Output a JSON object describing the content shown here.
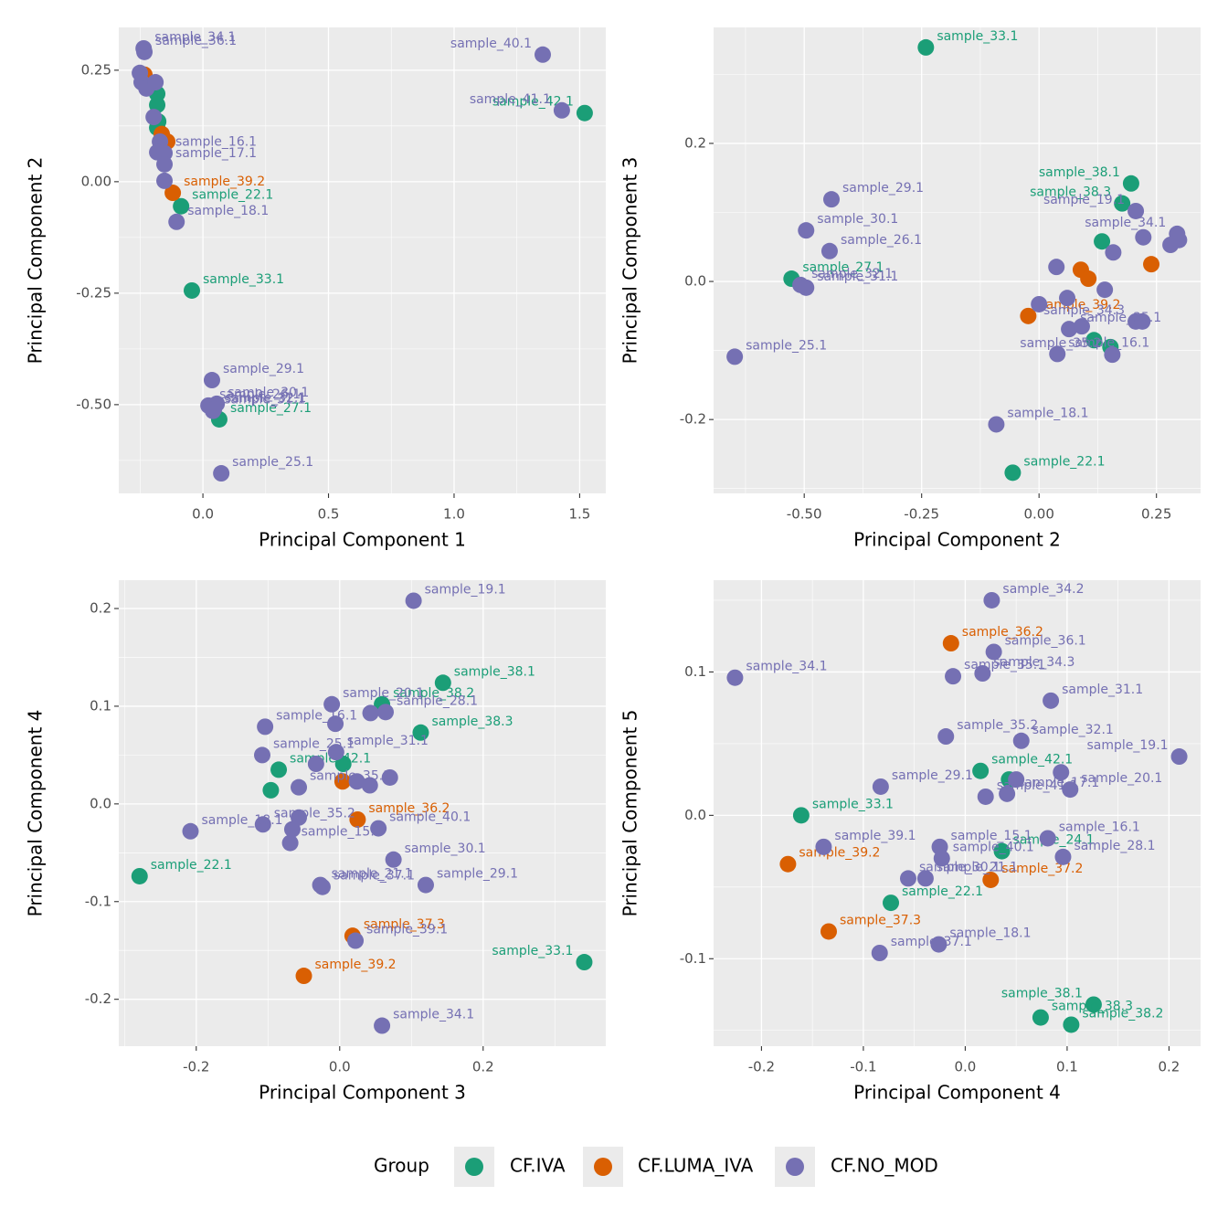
{
  "legend": {
    "title": "Group"
  },
  "chart_data": [
    {
      "type": "scatter",
      "x_label": "Principal Component 1",
      "y_label": "Principal Component 2",
      "xlim": [
        -0.335,
        1.604
      ],
      "ylim": [
        -0.699,
        0.346
      ],
      "xticks": [
        {
          "value": 0,
          "label": "0.0"
        },
        0.5,
        {
          "value": 1,
          "label": "1.0"
        },
        1.5
      ],
      "yticks": [
        0.25,
        {
          "value": 0,
          "label": "0.00"
        },
        -0.25,
        {
          "value": -0.5,
          "label": "-0.50"
        }
      ],
      "grid": true,
      "series": [
        {
          "name": "CF.IVA",
          "color": "#1b9e77",
          "x": [
            -0.182,
            -0.182,
            -0.178,
            -0.182,
            -0.087,
            -0.044,
            0.065,
            1.52
          ],
          "y": [
            0.197,
            0.172,
            0.135,
            0.121,
            -0.055,
            -0.244,
            -0.533,
            0.154
          ],
          "labels": [
            null,
            null,
            null,
            null,
            "sample_22.1",
            "sample_33.1",
            "sample_27.1",
            "sample_42.1"
          ]
        },
        {
          "name": "CF.LUMA_IVA",
          "color": "#d95f02",
          "x": [
            -0.233,
            -0.164,
            -0.142,
            -0.12
          ],
          "y": [
            0.24,
            0.107,
            0.09,
            -0.025
          ],
          "labels": [
            null,
            null,
            null,
            "sample_39.2"
          ]
        },
        {
          "name": "CF.NO_MOD",
          "color": "#7570b3",
          "x": [
            -0.236,
            -0.233,
            -0.251,
            -0.244,
            -0.225,
            -0.189,
            -0.196,
            -0.171,
            -0.182,
            -0.153,
            -0.153,
            -0.153,
            -0.105,
            1.353,
            1.429,
            0.036,
            0.022,
            0.055,
            0.04,
            0.044,
            0.073
          ],
          "y": [
            0.299,
            0.291,
            0.244,
            0.223,
            0.209,
            0.223,
            0.145,
            0.09,
            0.066,
            0.064,
            0.039,
            0.002,
            -0.09,
            0.285,
            0.16,
            -0.445,
            -0.502,
            -0.498,
            -0.514,
            -0.51,
            -0.654
          ],
          "labels": [
            "sample_34.1",
            "sample_36.1",
            null,
            null,
            null,
            null,
            null,
            null,
            null,
            "sample_16.1",
            "sample_17.1",
            null,
            "sample_18.1",
            "sample_40.1",
            "sample_41.1",
            "sample_29.1",
            "sample_26.1",
            "sample_30.1",
            "sample_31.1",
            "sample_32.1",
            "sample_25.1"
          ]
        }
      ]
    },
    {
      "type": "scatter",
      "x_label": "Principal Component 2",
      "y_label": "Principal Component 3",
      "xlim": [
        -0.693,
        0.344
      ],
      "ylim": [
        -0.307,
        0.368
      ],
      "xticks": [
        {
          "value": -0.5,
          "label": "-0.50"
        },
        -0.25,
        {
          "value": 0,
          "label": "0.00"
        },
        0.25
      ],
      "yticks": [
        0.2,
        {
          "value": 0,
          "label": "0.0"
        },
        -0.2
      ],
      "grid": true,
      "series": [
        {
          "name": "CF.IVA",
          "color": "#1b9e77",
          "x": [
            -0.241,
            0.196,
            0.177,
            0.134,
            -0.527,
            0.117,
            0.152,
            -0.056
          ],
          "y": [
            0.339,
            0.142,
            0.113,
            0.058,
            0.004,
            -0.085,
            -0.095,
            -0.277
          ],
          "labels": [
            "sample_33.1",
            "sample_38.1",
            "sample_38.3",
            null,
            "sample_27.1",
            null,
            null,
            "sample_22.1"
          ]
        },
        {
          "name": "CF.LUMA_IVA",
          "color": "#d95f02",
          "x": [
            0.089,
            0.105,
            0.239,
            -0.023
          ],
          "y": [
            0.017,
            0.004,
            0.025,
            -0.05
          ],
          "labels": [
            null,
            null,
            null,
            "sample_39.2"
          ]
        },
        {
          "name": "CF.NO_MOD",
          "color": "#7570b3",
          "x": [
            -0.442,
            -0.496,
            -0.446,
            -0.508,
            -0.496,
            -0.648,
            -0.091,
            0.039,
            0.156,
            0.037,
            0.06,
            0.0,
            0.064,
            0.091,
            0.14,
            0.206,
            0.22,
            0.206,
            0.158,
            0.222,
            0.28,
            0.298,
            0.294
          ],
          "y": [
            0.119,
            0.074,
            0.044,
            -0.005,
            -0.009,
            -0.109,
            -0.207,
            -0.105,
            -0.106,
            0.021,
            -0.024,
            -0.033,
            -0.069,
            -0.065,
            -0.012,
            -0.058,
            -0.058,
            0.102,
            0.042,
            0.064,
            0.053,
            0.06,
            0.069
          ],
          "labels": [
            "sample_29.1",
            "sample_30.1",
            "sample_26.1",
            "sample_32.1",
            "sample_31.1",
            "sample_25.1",
            "sample_18.1",
            "sample_16.1",
            "sample_35.2",
            null,
            null,
            null,
            "sample_35.1",
            null,
            null,
            "sample_34.3",
            null,
            "sample_19.1",
            null,
            null,
            null,
            null,
            "sample_34.1"
          ]
        }
      ]
    },
    {
      "type": "scatter",
      "x_label": "Principal Component 3",
      "y_label": "Principal Component 4",
      "xlim": [
        -0.308,
        0.371
      ],
      "ylim": [
        -0.248,
        0.229
      ],
      "xticks": [
        -0.2,
        {
          "value": 0,
          "label": "0.0"
        },
        0.2
      ],
      "yticks": [
        0.2,
        0.1,
        {
          "value": 0,
          "label": "0.0"
        },
        -0.1,
        -0.2
      ],
      "grid": true,
      "series": [
        {
          "name": "CF.IVA",
          "color": "#1b9e77",
          "x": [
            0.144,
            0.059,
            0.113,
            0.005,
            -0.085,
            -0.096,
            -0.279,
            0.341
          ],
          "y": [
            0.124,
            0.102,
            0.073,
            0.041,
            0.035,
            0.014,
            -0.074,
            -0.162
          ],
          "labels": [
            "sample_38.1",
            "sample_38.2",
            "sample_38.3",
            null,
            "sample_42.1",
            null,
            "sample_22.1",
            "sample_33.1"
          ]
        },
        {
          "name": "CF.LUMA_IVA",
          "color": "#d95f02",
          "x": [
            0.004,
            0.025,
            0.018,
            -0.05
          ],
          "y": [
            0.023,
            -0.016,
            -0.135,
            -0.176
          ],
          "labels": [
            null,
            "sample_36.2",
            "sample_37.3",
            "sample_39.2"
          ]
        },
        {
          "name": "CF.NO_MOD",
          "color": "#7570b3",
          "x": [
            0.103,
            -0.011,
            -0.006,
            -0.104,
            -0.108,
            -0.005,
            -0.033,
            0.043,
            0.064,
            -0.057,
            0.024,
            0.042,
            0.07,
            -0.107,
            -0.057,
            -0.066,
            -0.069,
            -0.208,
            0.054,
            0.075,
            0.12,
            -0.024,
            -0.027,
            0.022,
            0.059
          ],
          "y": [
            0.208,
            0.102,
            0.082,
            0.079,
            0.05,
            0.053,
            0.041,
            0.093,
            0.094,
            0.017,
            0.023,
            0.019,
            0.027,
            -0.021,
            -0.014,
            -0.026,
            -0.04,
            -0.028,
            -0.025,
            -0.057,
            -0.083,
            -0.085,
            -0.083,
            -0.14,
            -0.227
          ],
          "labels": [
            "sample_19.1",
            "sample_20.1",
            null,
            "sample_16.1",
            "sample_25.1",
            "sample_31.1",
            null,
            null,
            "sample_28.1",
            "sample_35.1",
            null,
            null,
            null,
            "sample_35.2",
            null,
            null,
            "sample_15.1",
            "sample_18.1",
            "sample_40.1",
            "sample_30.1",
            "sample_29.1",
            "sample_37.1",
            "sample_21.1",
            "sample_39.1",
            "sample_34.1"
          ]
        }
      ]
    },
    {
      "type": "scatter",
      "x_label": "Principal Component 4",
      "y_label": "Principal Component 5",
      "xlim": [
        -0.247,
        0.231
      ],
      "ylim": [
        -0.161,
        0.164
      ],
      "xticks": [
        -0.2,
        -0.1,
        {
          "value": 0,
          "label": "0.0"
        },
        0.1,
        0.2
      ],
      "yticks": [
        0.1,
        {
          "value": 0,
          "label": "0.0"
        },
        -0.1
      ],
      "grid": true,
      "series": [
        {
          "name": "CF.IVA",
          "color": "#1b9e77",
          "x": [
            -0.161,
            0.015,
            0.043,
            0.036,
            -0.073,
            0.126,
            0.074,
            0.104
          ],
          "y": [
            0.0,
            0.031,
            0.025,
            -0.025,
            -0.061,
            -0.132,
            -0.141,
            -0.146
          ],
          "labels": [
            "sample_33.1",
            "sample_42.1",
            null,
            "sample_24.1",
            "sample_22.1",
            "sample_38.1",
            "sample_38.3",
            "sample_38.2"
          ]
        },
        {
          "name": "CF.LUMA_IVA",
          "color": "#d95f02",
          "x": [
            -0.014,
            -0.174,
            -0.134,
            0.025
          ],
          "y": [
            0.12,
            -0.034,
            -0.081,
            -0.045
          ],
          "labels": [
            "sample_36.2",
            "sample_39.2",
            "sample_37.3",
            "sample_37.2"
          ]
        },
        {
          "name": "CF.NO_MOD",
          "color": "#7570b3",
          "x": [
            0.026,
            0.028,
            -0.226,
            -0.012,
            0.017,
            0.084,
            -0.019,
            0.055,
            0.21,
            0.103,
            0.094,
            -0.083,
            0.02,
            0.041,
            0.05,
            0.081,
            0.096,
            -0.025,
            -0.023,
            -0.139,
            -0.056,
            -0.039,
            -0.026,
            -0.084
          ],
          "y": [
            0.15,
            0.114,
            0.096,
            0.097,
            0.099,
            0.08,
            0.055,
            0.052,
            0.041,
            0.018,
            0.03,
            0.02,
            0.013,
            0.015,
            0.025,
            -0.016,
            -0.029,
            -0.022,
            -0.03,
            -0.022,
            -0.044,
            -0.044,
            -0.09,
            -0.096
          ],
          "labels": [
            "sample_34.2",
            "sample_36.1",
            "sample_34.1",
            "sample_35.1",
            "sample_34.3",
            "sample_31.1",
            "sample_35.2",
            "sample_32.1",
            "sample_19.1",
            "sample_20.1",
            null,
            "sample_29.1",
            "sample_41.1",
            "sample_17.1",
            null,
            "sample_16.1",
            "sample_28.1",
            "sample_15.1",
            "sample_40.1",
            "sample_39.1",
            "sample_30.1",
            "sample_21.1",
            "sample_18.1",
            "sample_37.1"
          ]
        }
      ]
    }
  ]
}
